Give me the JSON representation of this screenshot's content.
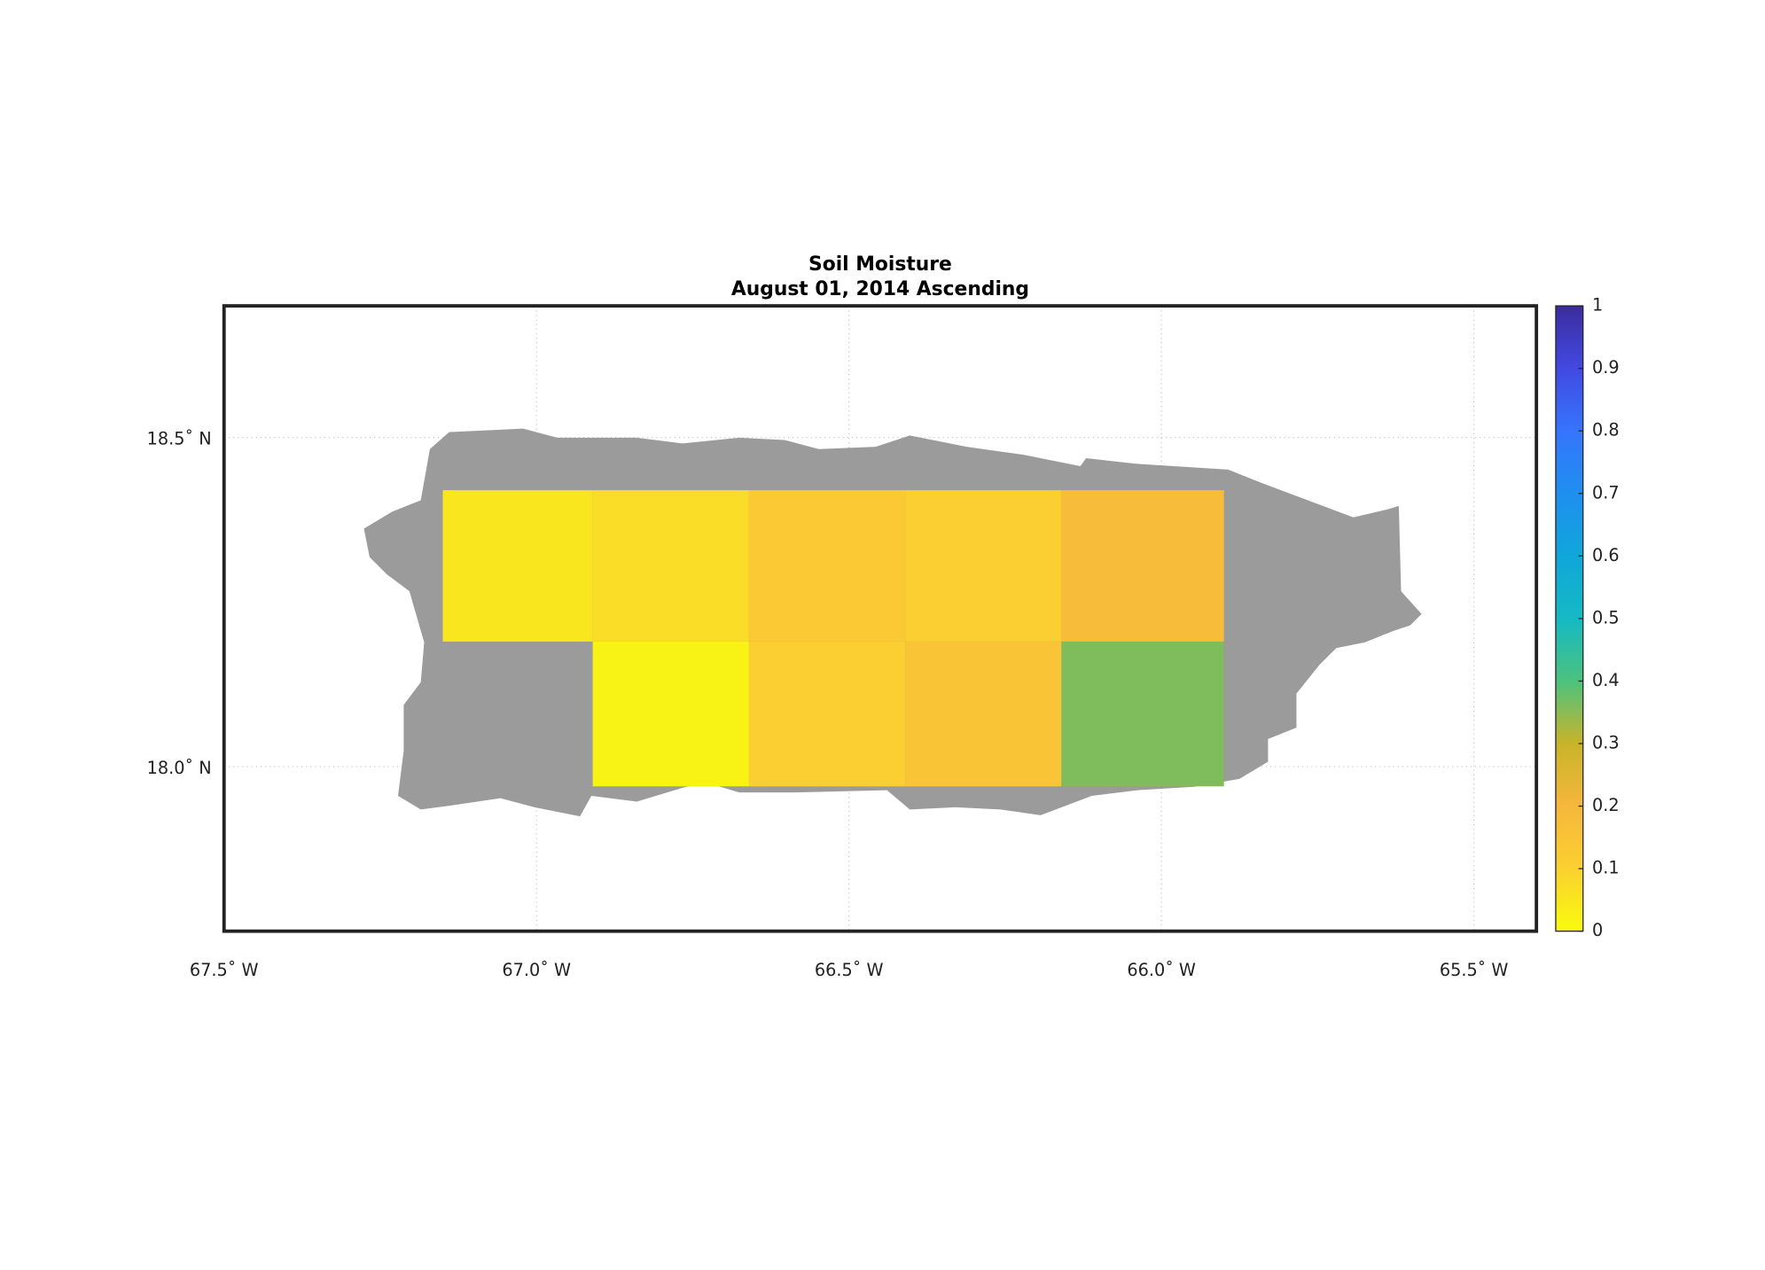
{
  "chart_data": {
    "type": "gridmap",
    "title": "Soil Moisture",
    "subtitle": "August 01, 2014 Ascending",
    "xlim": [
      -67.5,
      -65.4
    ],
    "ylim": [
      17.75,
      18.7
    ],
    "xticks": [
      {
        "value": -67.5,
        "label": "67.5˚ W"
      },
      {
        "value": -67.0,
        "label": "67.0˚ W"
      },
      {
        "value": -66.5,
        "label": "66.5˚ W"
      },
      {
        "value": -66.0,
        "label": "66.0˚ W"
      },
      {
        "value": -65.5,
        "label": "65.5˚ W"
      }
    ],
    "yticks": [
      {
        "value": 18.5,
        "label": "18.5˚ N"
      },
      {
        "value": 18.0,
        "label": "18.0˚ N"
      }
    ],
    "grid": true,
    "x_edges": [
      -67.15,
      -66.91,
      -66.66,
      -66.41,
      -66.16,
      -65.9
    ],
    "y_edges": [
      17.97,
      18.19,
      18.42
    ],
    "values": [
      [
        null,
        0.02,
        0.11,
        0.15,
        0.36
      ],
      [
        0.05,
        0.07,
        0.13,
        0.11,
        0.18
      ]
    ],
    "clim": [
      0,
      1
    ],
    "cticks": [
      0,
      0.1,
      0.2,
      0.3,
      0.4,
      0.5,
      0.6,
      0.7,
      0.8,
      0.9,
      1
    ],
    "colormap": [
      "#f9fb0e",
      "#fbd030",
      "#f6b73c",
      "#c8b42a",
      "#4cc27d",
      "#14bac4",
      "#10a6da",
      "#1f8ff0",
      "#3575fd",
      "#4249e2",
      "#3b2c9e"
    ],
    "land_color": "#9b9b9b"
  }
}
